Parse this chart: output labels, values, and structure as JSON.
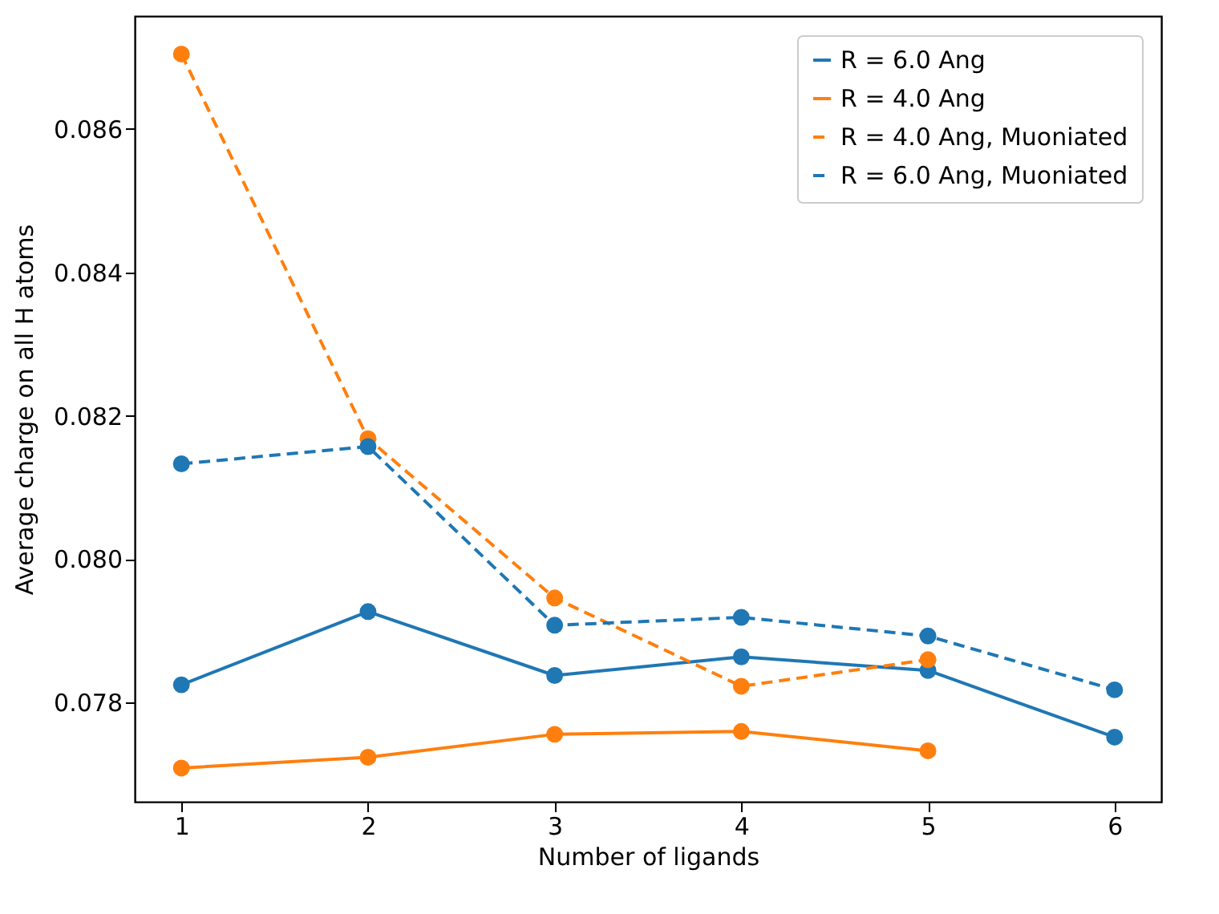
{
  "chart_data": {
    "type": "line",
    "xlabel": "Number of ligands",
    "ylabel": "Average charge on all H atoms",
    "x": [
      1,
      2,
      3,
      4,
      5,
      6
    ],
    "series": [
      {
        "name": "R = 6.0 Ang",
        "color": "#1f77b4",
        "line_style": "solid",
        "values": [
          0.07825,
          0.07927,
          0.07838,
          0.07864,
          0.07845,
          0.07752
        ]
      },
      {
        "name": "R = 4.0 Ang",
        "color": "#ff7f0e",
        "line_style": "solid",
        "values": [
          0.07709,
          0.07724,
          0.07756,
          0.0776,
          0.07733,
          null
        ]
      },
      {
        "name": "R = 4.0 Ang, Muoniated",
        "color": "#ff7f0e",
        "line_style": "dashed",
        "values": [
          0.08704,
          0.08168,
          0.07946,
          0.07823,
          0.0786,
          null
        ]
      },
      {
        "name": "R = 6.0 Ang, Muoniated",
        "color": "#1f77b4",
        "line_style": "dashed",
        "values": [
          0.08133,
          0.08157,
          0.07908,
          0.07919,
          0.07893,
          0.07818
        ]
      }
    ],
    "xlim": [
      0.75,
      6.25
    ],
    "xticks": [
      1,
      2,
      3,
      4,
      5,
      6
    ],
    "ylim": [
      0.07662,
      0.08757
    ],
    "yticks": [
      0.078,
      {
        "value": 0.08,
        "label": "0.080"
      },
      0.082,
      0.084,
      0.086
    ],
    "grid": false,
    "legend": "top right",
    "marker": "circle"
  }
}
